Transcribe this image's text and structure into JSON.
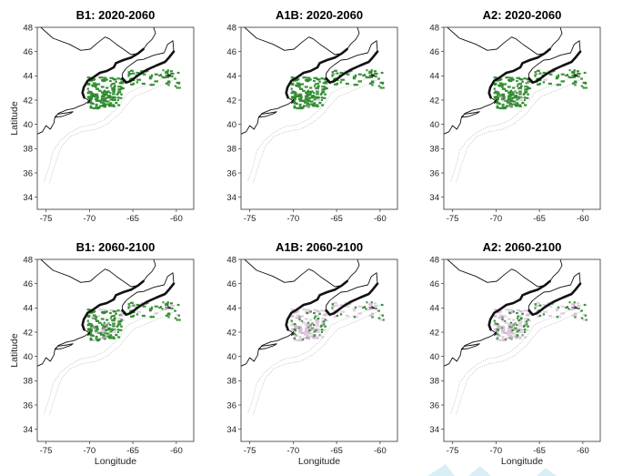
{
  "figure": {
    "xlim": [
      -76,
      -58
    ],
    "ylim": [
      33,
      48
    ],
    "x_ticks": [
      -75,
      -70,
      -65,
      -60
    ],
    "y_ticks": [
      34,
      36,
      38,
      40,
      42,
      44,
      46,
      48
    ],
    "ylabel": "Latitude",
    "xlabel": "Longitude",
    "habitat_color": "#2e8b2e",
    "lost_habitat_color": "#c8a8c8",
    "coast_color": "#111111"
  },
  "panels": [
    {
      "id": "b1-2020",
      "title": "B1: 2020-2060",
      "habitat_level": 1.0,
      "show_ylabel": true,
      "show_xlabel": false
    },
    {
      "id": "a1b-2020",
      "title": "A1B: 2020-2060",
      "habitat_level": 0.95,
      "show_ylabel": false,
      "show_xlabel": false
    },
    {
      "id": "a2-2020",
      "title": "A2: 2020-2060",
      "habitat_level": 0.9,
      "show_ylabel": false,
      "show_xlabel": false
    },
    {
      "id": "b1-2060",
      "title": "B1: 2060-2100",
      "habitat_level": 0.75,
      "show_ylabel": true,
      "show_xlabel": true
    },
    {
      "id": "a1b-2060",
      "title": "A1B: 2060-2100",
      "habitat_level": 0.25,
      "show_ylabel": false,
      "show_xlabel": true
    },
    {
      "id": "a2-2060",
      "title": "A2: 2060-2100",
      "habitat_level": 0.3,
      "show_ylabel": false,
      "show_xlabel": true
    }
  ]
}
